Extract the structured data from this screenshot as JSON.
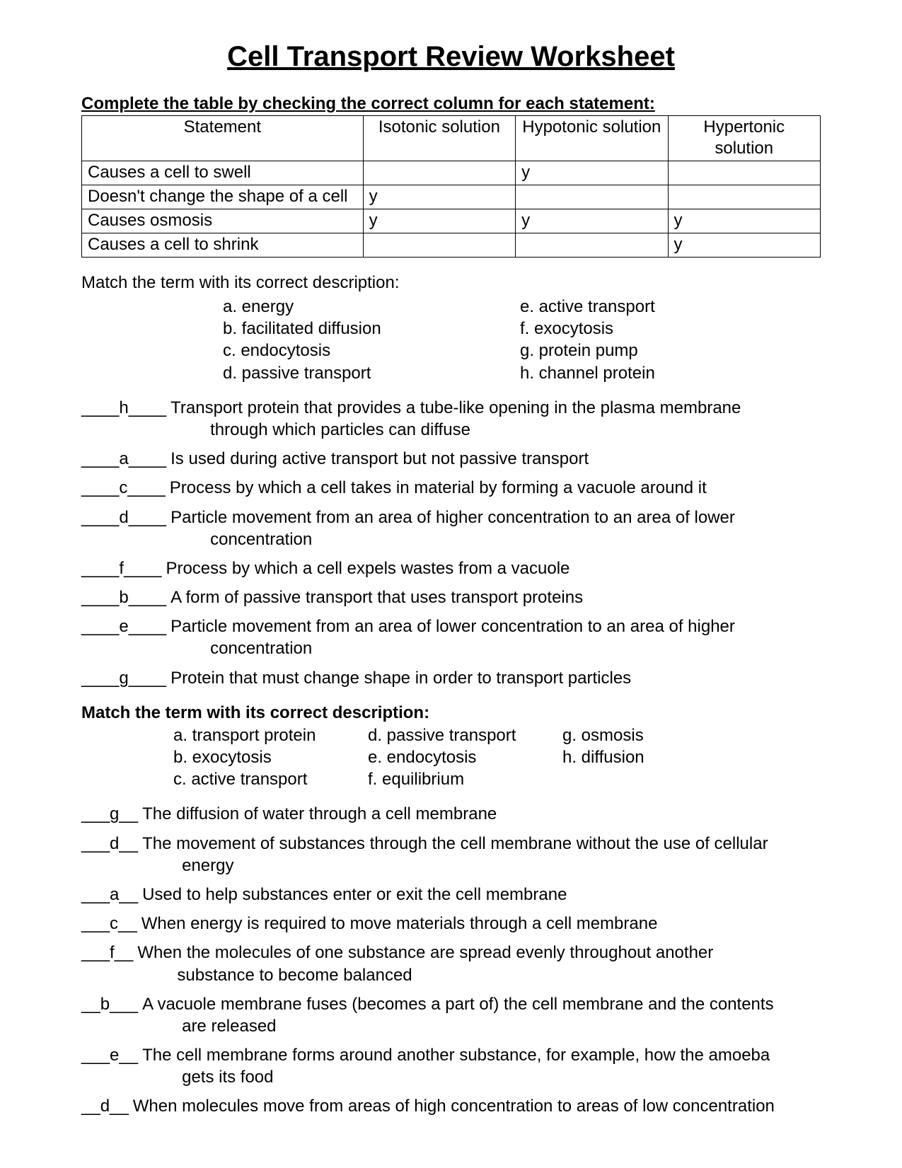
{
  "title": "Cell Transport Review Worksheet",
  "table": {
    "instruction": "Complete the table by checking the correct column for each statement:",
    "headers": {
      "statement": "Statement",
      "isotonic": "Isotonic solution",
      "hypotonic": "Hypotonic solution",
      "hypertonic": "Hypertonic solution"
    },
    "rows": [
      {
        "statement": "Causes a cell to swell",
        "isotonic": "",
        "hypotonic": "y",
        "hypertonic": ""
      },
      {
        "statement": "Doesn't change the shape of a cell",
        "isotonic": "y",
        "hypotonic": "",
        "hypertonic": ""
      },
      {
        "statement": "Causes osmosis",
        "isotonic": "y",
        "hypotonic": "y",
        "hypertonic": "y"
      },
      {
        "statement": "Causes a cell to shrink",
        "isotonic": "",
        "hypotonic": "",
        "hypertonic": "y"
      }
    ]
  },
  "match1": {
    "intro": "Match the term with its correct description:",
    "terms_left": [
      "a.  energy",
      "b.  facilitated diffusion",
      "c.  endocytosis",
      "d.  passive transport"
    ],
    "terms_right": [
      "e. active transport",
      "f. exocytosis",
      "g. protein pump",
      "h. channel protein"
    ],
    "items": [
      {
        "blank": "____h____",
        "line1": " Transport protein that provides a tube-like opening in the plasma membrane",
        "line2": "through which particles can diffuse"
      },
      {
        "blank": "____a____",
        "line1": " Is used during active transport but not passive transport",
        "line2": ""
      },
      {
        "blank": "____c____",
        "line1": " Process by which a cell takes in material by forming a vacuole around it",
        "line2": ""
      },
      {
        "blank": "____d____",
        "line1": " Particle movement from an area of higher concentration to an area of lower",
        "line2": "concentration"
      },
      {
        "blank": "____f____",
        "line1": " Process by which a cell expels wastes from a vacuole",
        "line2": ""
      },
      {
        "blank": "____b____",
        "line1": " A form of passive transport that uses transport proteins",
        "line2": ""
      },
      {
        "blank": "____e____",
        "line1": " Particle movement from an area of lower concentration to an area of higher",
        "line2": "concentration"
      },
      {
        "blank": "____g____",
        "line1": " Protein that must change shape in order to transport particles",
        "line2": ""
      }
    ]
  },
  "match2": {
    "intro": "Match the term with its correct description:",
    "terms_col1": [
      "a.  transport protein",
      "b.  exocytosis",
      "c.  active transport"
    ],
    "terms_col2": [
      "d. passive transport",
      "e. endocytosis",
      "f. equilibrium"
    ],
    "terms_col3": [
      "g. osmosis",
      "h. diffusion",
      ""
    ],
    "items": [
      {
        "blank": "___g__",
        "line1": " The diffusion of water through a cell membrane",
        "line2": ""
      },
      {
        "blank": "___d__",
        "line1": " The movement of substances through the cell membrane without the use of cellular",
        "line2": "energy"
      },
      {
        "blank": "___a__",
        "line1": " Used to help substances enter or exit the cell membrane",
        "line2": ""
      },
      {
        "blank": "___c__",
        "line1": " When energy is required to move materials through a cell membrane",
        "line2": ""
      },
      {
        "blank": "___f__",
        "line1": " When the molecules of one substance are spread evenly throughout another",
        "line2": "substance to become balanced"
      },
      {
        "blank": "__b___",
        "line1": " A vacuole membrane fuses (becomes a part of) the cell membrane and the contents",
        "line2": "are released"
      },
      {
        "blank": "___e__",
        "line1": " The cell membrane forms around another substance, for example, how the amoeba",
        "line2": "gets its food"
      },
      {
        "blank": "__d__",
        "line1": " When molecules move from areas of high concentration to areas of low concentration",
        "line2": ""
      }
    ]
  }
}
